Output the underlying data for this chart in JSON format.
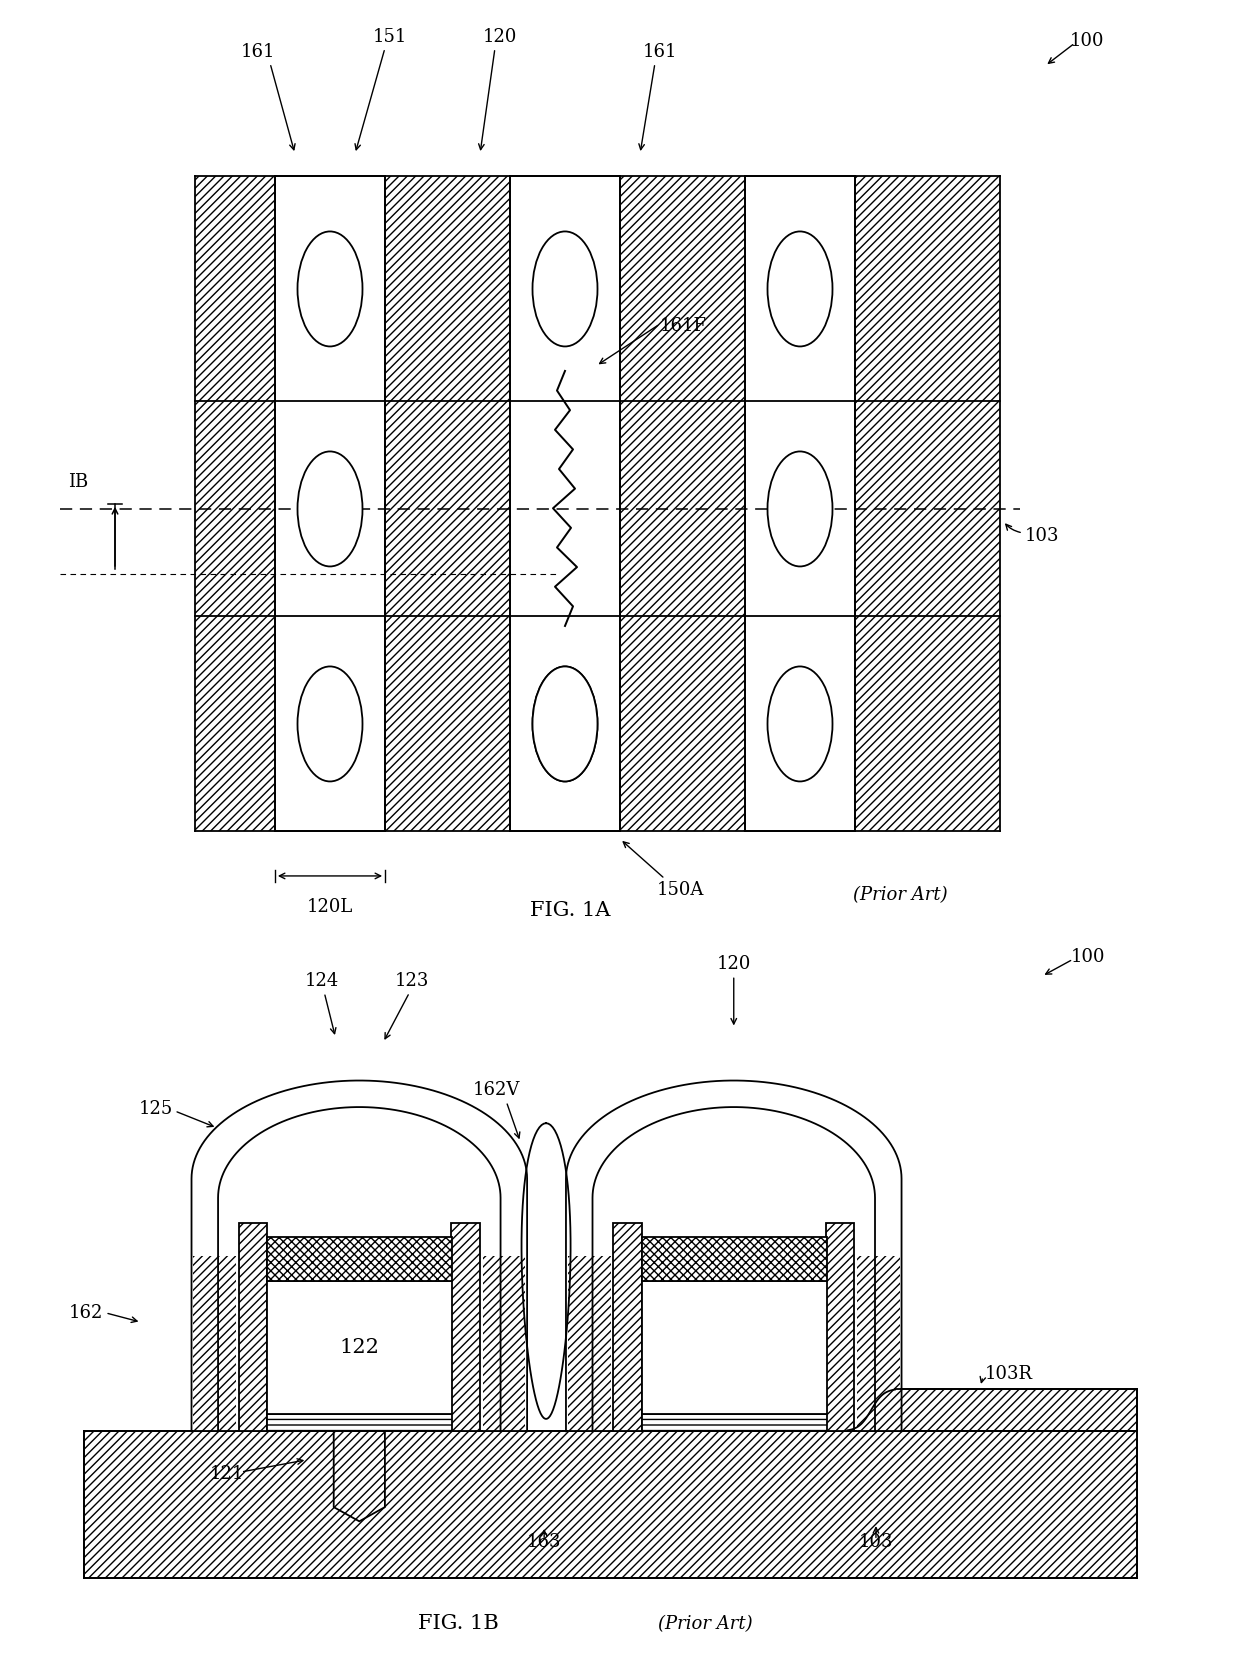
{
  "fig_width": 12.4,
  "fig_height": 16.73,
  "background_color": "#ffffff",
  "lw": 1.3
}
